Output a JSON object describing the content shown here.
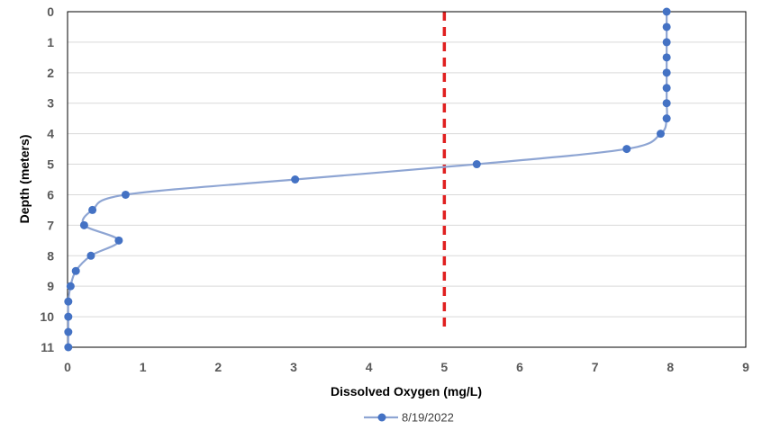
{
  "chart_data": {
    "type": "line",
    "title": "",
    "xlabel": "Dissolved Oxygen (mg/L)",
    "ylabel": "Depth (meters)",
    "xlim": [
      0,
      9
    ],
    "ylim": [
      0,
      11
    ],
    "y_inverted": true,
    "x_ticks": [
      "0",
      "1",
      "2",
      "3",
      "4",
      "5",
      "6",
      "7",
      "8",
      "9"
    ],
    "y_ticks": [
      "0",
      "1",
      "2",
      "3",
      "4",
      "5",
      "6",
      "7",
      "8",
      "9",
      "10",
      "11"
    ],
    "grid": "horizontal",
    "legend_position": "bottom",
    "series": [
      {
        "name": "8/19/2022",
        "color": "#4472c4",
        "line_color": "#8ea5d3",
        "marker": "circle",
        "smooth": true,
        "points": [
          {
            "x": 7.95,
            "y": 0
          },
          {
            "x": 7.95,
            "y": 0.5
          },
          {
            "x": 7.95,
            "y": 1
          },
          {
            "x": 7.95,
            "y": 1.5
          },
          {
            "x": 7.95,
            "y": 2
          },
          {
            "x": 7.95,
            "y": 2.5
          },
          {
            "x": 7.95,
            "y": 3
          },
          {
            "x": 7.95,
            "y": 3.5
          },
          {
            "x": 7.87,
            "y": 4
          },
          {
            "x": 7.42,
            "y": 4.5
          },
          {
            "x": 5.43,
            "y": 5
          },
          {
            "x": 3.02,
            "y": 5.5
          },
          {
            "x": 0.77,
            "y": 6
          },
          {
            "x": 0.33,
            "y": 6.5
          },
          {
            "x": 0.22,
            "y": 7
          },
          {
            "x": 0.68,
            "y": 7.5
          },
          {
            "x": 0.31,
            "y": 8
          },
          {
            "x": 0.11,
            "y": 8.5
          },
          {
            "x": 0.04,
            "y": 9
          },
          {
            "x": 0.01,
            "y": 9.5
          },
          {
            "x": 0.01,
            "y": 10
          },
          {
            "x": 0.01,
            "y": 10.5
          },
          {
            "x": 0.01,
            "y": 11
          }
        ]
      }
    ],
    "reference_lines": [
      {
        "axis": "x",
        "value": 5,
        "color": "#e02020",
        "style": "dashed"
      }
    ]
  }
}
